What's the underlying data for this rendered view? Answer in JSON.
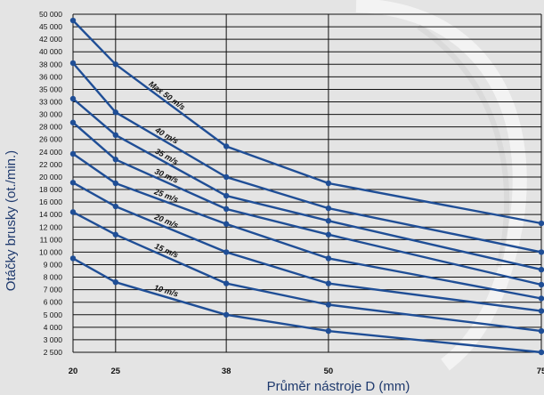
{
  "chart_data": {
    "type": "line",
    "title": "",
    "xlabel": "Průměr nástroje D (mm)",
    "ylabel": "Otáčky brusky (ot./min.)",
    "x": [
      20,
      25,
      38,
      50,
      75
    ],
    "x_ticks": [
      "20",
      "25",
      "38",
      "50",
      "75"
    ],
    "y_ticks": [
      {
        "value": 50000,
        "label": "50 000"
      },
      {
        "value": 45000,
        "label": "45 000"
      },
      {
        "value": 42000,
        "label": "42 000"
      },
      {
        "value": 40000,
        "label": "40 000"
      },
      {
        "value": 38000,
        "label": "38 000"
      },
      {
        "value": 36000,
        "label": "36 000"
      },
      {
        "value": 35000,
        "label": "35 000"
      },
      {
        "value": 33000,
        "label": "33 000"
      },
      {
        "value": 30000,
        "label": "30 000"
      },
      {
        "value": 28000,
        "label": "28 000"
      },
      {
        "value": 26000,
        "label": "26 000"
      },
      {
        "value": 24000,
        "label": "24 000"
      },
      {
        "value": 22000,
        "label": "22 000"
      },
      {
        "value": 20000,
        "label": "20 000"
      },
      {
        "value": 18000,
        "label": "18 000"
      },
      {
        "value": 16000,
        "label": "16 000"
      },
      {
        "value": 14000,
        "label": "14 000"
      },
      {
        "value": 12000,
        "label": "12 000"
      },
      {
        "value": 11000,
        "label": "11 000"
      },
      {
        "value": 10000,
        "label": "10 000"
      },
      {
        "value": 9000,
        "label": "9 000"
      },
      {
        "value": 8000,
        "label": "8 000"
      },
      {
        "value": 7000,
        "label": "7 000"
      },
      {
        "value": 6000,
        "label": "6 000"
      },
      {
        "value": 5000,
        "label": "5 000"
      },
      {
        "value": 4000,
        "label": "4 000"
      },
      {
        "value": 3000,
        "label": "3 000"
      },
      {
        "value": 2500,
        "label": "2 500"
      }
    ],
    "series": [
      {
        "name": "Max 50 m/s",
        "values": [
          47500,
          38000,
          24900,
          19000,
          12600
        ]
      },
      {
        "name": "40 m/s",
        "values": [
          38200,
          30500,
          20000,
          15000,
          10000
        ]
      },
      {
        "name": "35 m/s",
        "values": [
          33500,
          26700,
          17000,
          13000,
          8600
        ]
      },
      {
        "name": "30 m/s",
        "values": [
          28700,
          22800,
          14900,
          11400,
          7400
        ]
      },
      {
        "name": "25 m/s",
        "values": [
          23700,
          19000,
          12500,
          9500,
          6300
        ]
      },
      {
        "name": "20 m/s",
        "values": [
          19100,
          15300,
          10000,
          7500,
          5300
        ]
      },
      {
        "name": "15 m/s",
        "values": [
          14400,
          11400,
          7500,
          5800,
          3700
        ]
      },
      {
        "name": "10 m/s",
        "values": [
          9500,
          7600,
          5000,
          3700,
          2500
        ]
      }
    ],
    "grid": true,
    "legend": "inline-labels",
    "colors": {
      "line": "#1f4e96",
      "grid": "#111111",
      "text": "#111111",
      "axis_title": "#1f3a6e",
      "background": "#e4e4e4"
    }
  }
}
